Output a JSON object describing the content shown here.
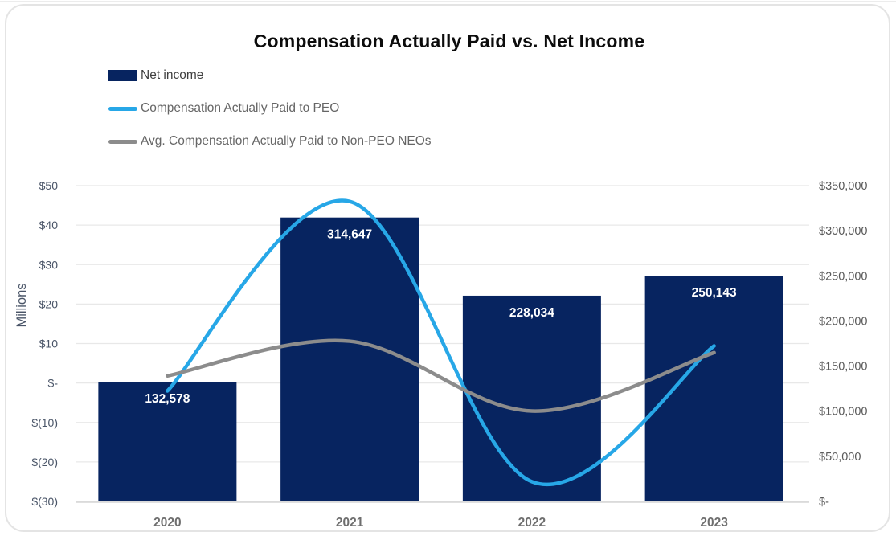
{
  "title": "Compensation Actually Paid vs. Net Income",
  "legend": [
    {
      "label": "Net income",
      "type": "bar",
      "color": "#072460"
    },
    {
      "label": "Compensation Actually Paid to PEO",
      "type": "line",
      "color": "#27a7e7"
    },
    {
      "label": "Avg. Compensation Actually Paid to Non-PEO NEOs",
      "type": "line",
      "color": "#8c8c8c"
    }
  ],
  "chart_data": {
    "type": "combo-bar-line",
    "title": "Compensation Actually Paid vs. Net Income",
    "categories": [
      "2020",
      "2021",
      "2022",
      "2023"
    ],
    "series": [
      {
        "name": "Net income",
        "type": "bar",
        "axis": "right",
        "values": [
          132578,
          314647,
          228034,
          250143
        ],
        "data_labels": [
          "132,578",
          "314,647",
          "228,034",
          "250,143"
        ],
        "color": "#072460",
        "data_label_color": "#ffffff"
      },
      {
        "name": "Compensation Actually Paid to PEO",
        "type": "line",
        "axis": "left_millions",
        "values": [
          -2.0,
          46.0,
          -25.0,
          9.4
        ],
        "color": "#27a7e7",
        "smooth": true
      },
      {
        "name": "Avg. Compensation Actually Paid to Non-PEO NEOs",
        "type": "line",
        "axis": "left_millions",
        "values": [
          1.8,
          10.6,
          -7.1,
          7.7
        ],
        "color": "#8c8c8c",
        "smooth": true
      }
    ],
    "left_axis": {
      "title": "Millions",
      "min": -30,
      "max": 50,
      "ticks": [
        "$50",
        "$40",
        "$30",
        "$20",
        "$10",
        "$-",
        "$(10)",
        "$(20)",
        "$(30)"
      ],
      "tick_color": "#4a5568",
      "title_color": "#4a5568"
    },
    "right_axis": {
      "min": 0,
      "max": 350000,
      "ticks": [
        "$350,000",
        "$300,000",
        "$250,000",
        "$200,000",
        "$150,000",
        "$100,000",
        "$50,000",
        "$-"
      ],
      "tick_color": "#5a5a5a"
    },
    "x_axis": {
      "labels": [
        "2020",
        "2021",
        "2022",
        "2023"
      ],
      "label_color": "#6e6e6e"
    },
    "grid": true,
    "gridline_color": "#e8e8e8",
    "axis_line_color": "#d6d6d6",
    "legend_position": "top-left"
  }
}
